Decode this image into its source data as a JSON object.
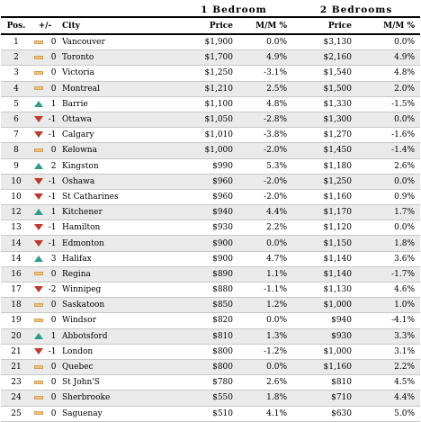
{
  "group_headers": {
    "one_bedroom": "1 Bedroom",
    "two_bedrooms": "2 Bedrooms"
  },
  "columns": {
    "pos": "Pos.",
    "change": "+/-",
    "city": "City",
    "price1": "Price",
    "mm1": "M/M %",
    "price2": "Price",
    "mm2": "M/M %"
  },
  "colors": {
    "up": "#2e9e86",
    "down": "#c0392b",
    "same": "#f1c27d",
    "row_alt": "#eaeaea"
  },
  "rows": [
    {
      "pos": "1",
      "icon": "same-icon",
      "change": "0",
      "city": "Vancouver",
      "price1": "$1,900",
      "mm1": "0.0%",
      "price2": "$3,130",
      "mm2": "0.0%"
    },
    {
      "pos": "2",
      "icon": "same-icon",
      "change": "0",
      "city": "Toronto",
      "price1": "$1,700",
      "mm1": "4.9%",
      "price2": "$2,160",
      "mm2": "4.9%"
    },
    {
      "pos": "3",
      "icon": "same-icon",
      "change": "0",
      "city": "Victoria",
      "price1": "$1,250",
      "mm1": "-3.1%",
      "price2": "$1,540",
      "mm2": "4.8%"
    },
    {
      "pos": "4",
      "icon": "same-icon",
      "change": "0",
      "city": "Montreal",
      "price1": "$1,210",
      "mm1": "2.5%",
      "price2": "$1,500",
      "mm2": "2.0%"
    },
    {
      "pos": "5",
      "icon": "up-icon",
      "change": "1",
      "city": "Barrie",
      "price1": "$1,100",
      "mm1": "4.8%",
      "price2": "$1,330",
      "mm2": "-1.5%"
    },
    {
      "pos": "6",
      "icon": "down-icon",
      "change": "-1",
      "city": "Ottawa",
      "price1": "$1,050",
      "mm1": "-2.8%",
      "price2": "$1,300",
      "mm2": "0.0%"
    },
    {
      "pos": "7",
      "icon": "down-icon",
      "change": "-1",
      "city": "Calgary",
      "price1": "$1,010",
      "mm1": "-3.8%",
      "price2": "$1,270",
      "mm2": "-1.6%"
    },
    {
      "pos": "8",
      "icon": "same-icon",
      "change": "0",
      "city": "Kelowna",
      "price1": "$1,000",
      "mm1": "-2.0%",
      "price2": "$1,450",
      "mm2": "-1.4%"
    },
    {
      "pos": "9",
      "icon": "up-icon",
      "change": "2",
      "city": "Kingston",
      "price1": "$990",
      "mm1": "5.3%",
      "price2": "$1,180",
      "mm2": "2.6%"
    },
    {
      "pos": "10",
      "icon": "down-icon",
      "change": "-1",
      "city": "Oshawa",
      "price1": "$960",
      "mm1": "-2.0%",
      "price2": "$1,250",
      "mm2": "0.0%"
    },
    {
      "pos": "10",
      "icon": "down-icon",
      "change": "-1",
      "city": "St Catharines",
      "price1": "$960",
      "mm1": "-2.0%",
      "price2": "$1,160",
      "mm2": "0.9%"
    },
    {
      "pos": "12",
      "icon": "up-icon",
      "change": "1",
      "city": "Kitchener",
      "price1": "$940",
      "mm1": "4.4%",
      "price2": "$1,170",
      "mm2": "1.7%"
    },
    {
      "pos": "13",
      "icon": "down-icon",
      "change": "-1",
      "city": "Hamilton",
      "price1": "$930",
      "mm1": "2.2%",
      "price2": "$1,120",
      "mm2": "0.0%"
    },
    {
      "pos": "14",
      "icon": "down-icon",
      "change": "-1",
      "city": "Edmonton",
      "price1": "$900",
      "mm1": "0.0%",
      "price2": "$1,150",
      "mm2": "1.8%"
    },
    {
      "pos": "14",
      "icon": "up-icon",
      "change": "3",
      "city": "Halifax",
      "price1": "$900",
      "mm1": "4.7%",
      "price2": "$1,140",
      "mm2": "3.6%"
    },
    {
      "pos": "16",
      "icon": "same-icon",
      "change": "0",
      "city": "Regina",
      "price1": "$890",
      "mm1": "1.1%",
      "price2": "$1,140",
      "mm2": "-1.7%"
    },
    {
      "pos": "17",
      "icon": "down-icon",
      "change": "-2",
      "city": "Winnipeg",
      "price1": "$880",
      "mm1": "-1.1%",
      "price2": "$1,130",
      "mm2": "4.6%"
    },
    {
      "pos": "18",
      "icon": "same-icon",
      "change": "0",
      "city": "Saskatoon",
      "price1": "$850",
      "mm1": "1.2%",
      "price2": "$1,000",
      "mm2": "1.0%"
    },
    {
      "pos": "19",
      "icon": "same-icon",
      "change": "0",
      "city": "Windsor",
      "price1": "$820",
      "mm1": "0.0%",
      "price2": "$940",
      "mm2": "-4.1%"
    },
    {
      "pos": "20",
      "icon": "up-icon",
      "change": "1",
      "city": "Abbotsford",
      "price1": "$810",
      "mm1": "1.3%",
      "price2": "$930",
      "mm2": "3.3%"
    },
    {
      "pos": "21",
      "icon": "down-icon",
      "change": "-1",
      "city": "London",
      "price1": "$800",
      "mm1": "-1.2%",
      "price2": "$1,000",
      "mm2": "3.1%"
    },
    {
      "pos": "21",
      "icon": "same-icon",
      "change": "0",
      "city": "Quebec",
      "price1": "$800",
      "mm1": "0.0%",
      "price2": "$1,160",
      "mm2": "2.2%"
    },
    {
      "pos": "23",
      "icon": "same-icon",
      "change": "0",
      "city": "St John'S",
      "price1": "$780",
      "mm1": "2.6%",
      "price2": "$810",
      "mm2": "4.5%"
    },
    {
      "pos": "24",
      "icon": "same-icon",
      "change": "0",
      "city": "Sherbrooke",
      "price1": "$550",
      "mm1": "1.8%",
      "price2": "$710",
      "mm2": "4.4%"
    },
    {
      "pos": "25",
      "icon": "same-icon",
      "change": "0",
      "city": "Saguenay",
      "price1": "$510",
      "mm1": "4.1%",
      "price2": "$630",
      "mm2": "5.0%"
    }
  ]
}
